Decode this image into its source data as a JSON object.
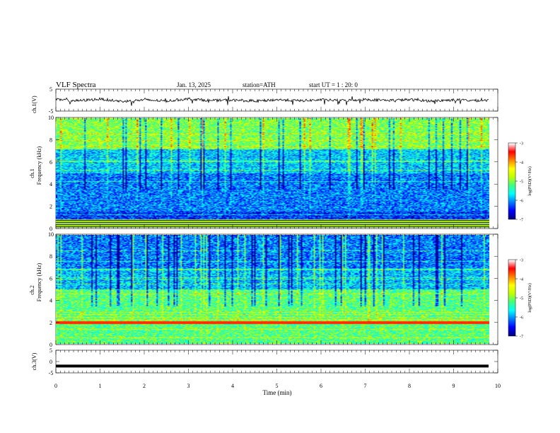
{
  "header": {
    "title": "VLF  Spectra",
    "date": "Jan. 13, 2025",
    "station": "station=ATH",
    "start": "start  UT  =   1 : 20: 0"
  },
  "chart_data": [
    {
      "type": "line",
      "panel": "ch1-waveform",
      "ylabel": "ch.1(V)",
      "ylim": [
        -5,
        5
      ],
      "yticks": [
        5,
        -5
      ],
      "description_values": "voltage trace fluctuating near 0 V",
      "x": [
        0,
        0.5,
        1,
        1.5,
        2,
        2.5,
        3,
        3.5,
        4,
        4.5,
        5,
        5.5,
        6,
        6.5,
        7,
        7.5,
        8,
        8.5,
        9,
        9.5,
        9.8
      ],
      "y": [
        0.2,
        -0.3,
        0.5,
        -0.6,
        0.1,
        -0.4,
        0.6,
        -0.2,
        0.0,
        -0.5,
        0.2,
        -0.3,
        0.1,
        -0.2,
        0.3,
        -0.1,
        0.2,
        -0.4,
        0.1,
        -0.2,
        0.0
      ]
    },
    {
      "type": "heatmap",
      "panel": "ch1-spectrogram",
      "ylabel_line1": "ch.1",
      "ylabel_line2": "Frequency  (kHz)",
      "ylim": [
        0,
        10
      ],
      "yticks": [
        0,
        2,
        4,
        6,
        8,
        10
      ],
      "colorbar": {
        "label": "log(PSD)(V²/Hz)",
        "ticks": [
          -3,
          -4,
          -5,
          -6,
          -7
        ],
        "range": [
          -7,
          -3
        ]
      }
    },
    {
      "type": "heatmap",
      "panel": "ch2-spectrogram",
      "ylabel_line1": "ch.2",
      "ylabel_line2": "Frequency  (kHz)",
      "ylim": [
        0,
        10
      ],
      "yticks": [
        0,
        2,
        4,
        6,
        8,
        10
      ],
      "colorbar": {
        "label": "log(PSD)(V²/Hz)",
        "ticks": [
          -3,
          -4,
          -5,
          -6,
          -7
        ],
        "range": [
          -7,
          -3
        ]
      }
    },
    {
      "type": "line",
      "panel": "ch3-waveform",
      "ylabel": "ch.3(V)",
      "ylim": [
        -5,
        5
      ],
      "yticks": [
        5,
        0,
        -5
      ],
      "x": [
        0,
        9.8
      ],
      "y": [
        -2,
        -2
      ]
    }
  ],
  "xaxis": {
    "label": "Time  (min)",
    "ticks": [
      0,
      1,
      2,
      3,
      4,
      5,
      6,
      7,
      8,
      9,
      10
    ],
    "xlim": [
      0,
      10
    ]
  },
  "colors": {
    "colormap": [
      "#000080",
      "#0000ff",
      "#0080ff",
      "#00ffff",
      "#40ff80",
      "#c0ff00",
      "#ffff00",
      "#ff8000",
      "#ff0000",
      "#ffffff"
    ]
  }
}
